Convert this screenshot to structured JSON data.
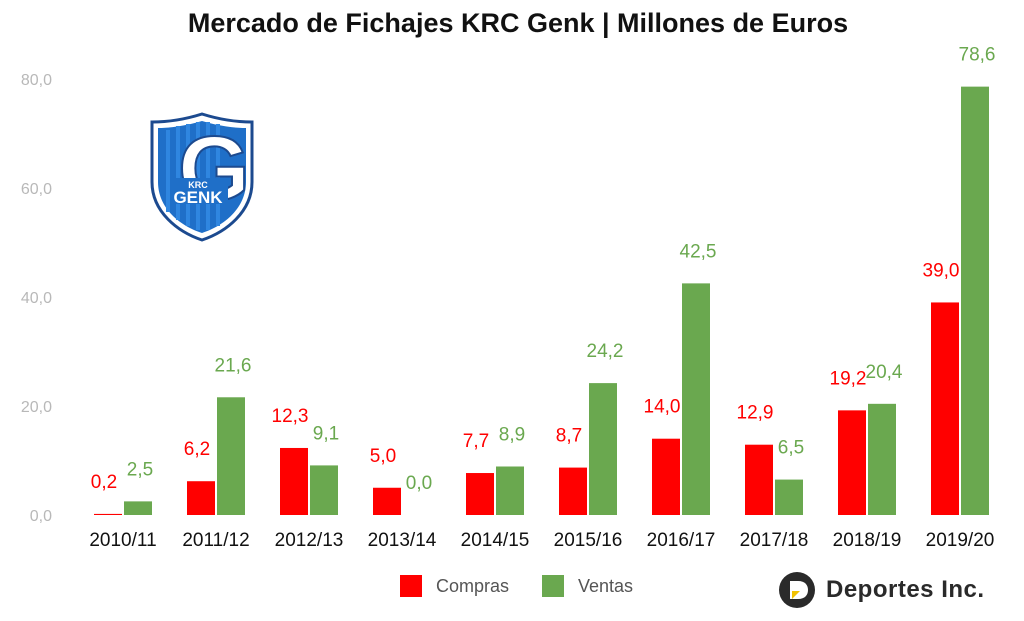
{
  "chart_data": {
    "type": "bar",
    "title": "Mercado de Fichajes KRC Genk | Millones de Euros",
    "categories": [
      "2010/11",
      "2011/12",
      "2012/13",
      "2013/14",
      "2014/15",
      "2015/16",
      "2016/17",
      "2017/18",
      "2018/19",
      "2019/20"
    ],
    "series": [
      {
        "name": "Compras",
        "color": "#ff0000",
        "values": [
          0.2,
          6.2,
          12.3,
          5.0,
          7.7,
          8.7,
          14.0,
          12.9,
          19.2,
          39.0
        ],
        "labels": [
          "0,2",
          "6,2",
          "12,3",
          "5,0",
          "7,7",
          "8,7",
          "14,0",
          "12,9",
          "19,2",
          "39,0"
        ]
      },
      {
        "name": "Ventas",
        "color": "#6aa84f",
        "values": [
          2.5,
          21.6,
          9.1,
          0.0,
          8.9,
          24.2,
          42.5,
          6.5,
          20.4,
          78.6
        ],
        "labels": [
          "2,5",
          "21,6",
          "9,1",
          "0,0",
          "8,9",
          "24,2",
          "42,5",
          "6,5",
          "20,4",
          "78,6"
        ]
      }
    ],
    "yticks": [
      "0,0",
      "20,0",
      "40,0",
      "60,0",
      "80,0"
    ],
    "ytick_values": [
      0,
      20,
      40,
      60,
      80
    ],
    "ylim": [
      0,
      80
    ],
    "grid": false,
    "legend": "bottom"
  },
  "colors": {
    "compras": "#ff0000",
    "ventas": "#6aa84f",
    "logo_blue": "#1f6fc8"
  },
  "logo": {
    "club_top": "KRC",
    "club_name": "GENK",
    "letter": "G",
    "icon": "krc-genk-crest"
  },
  "brand": {
    "name": "Deportes Inc.",
    "icon": "deportes-inc-logo-icon"
  }
}
